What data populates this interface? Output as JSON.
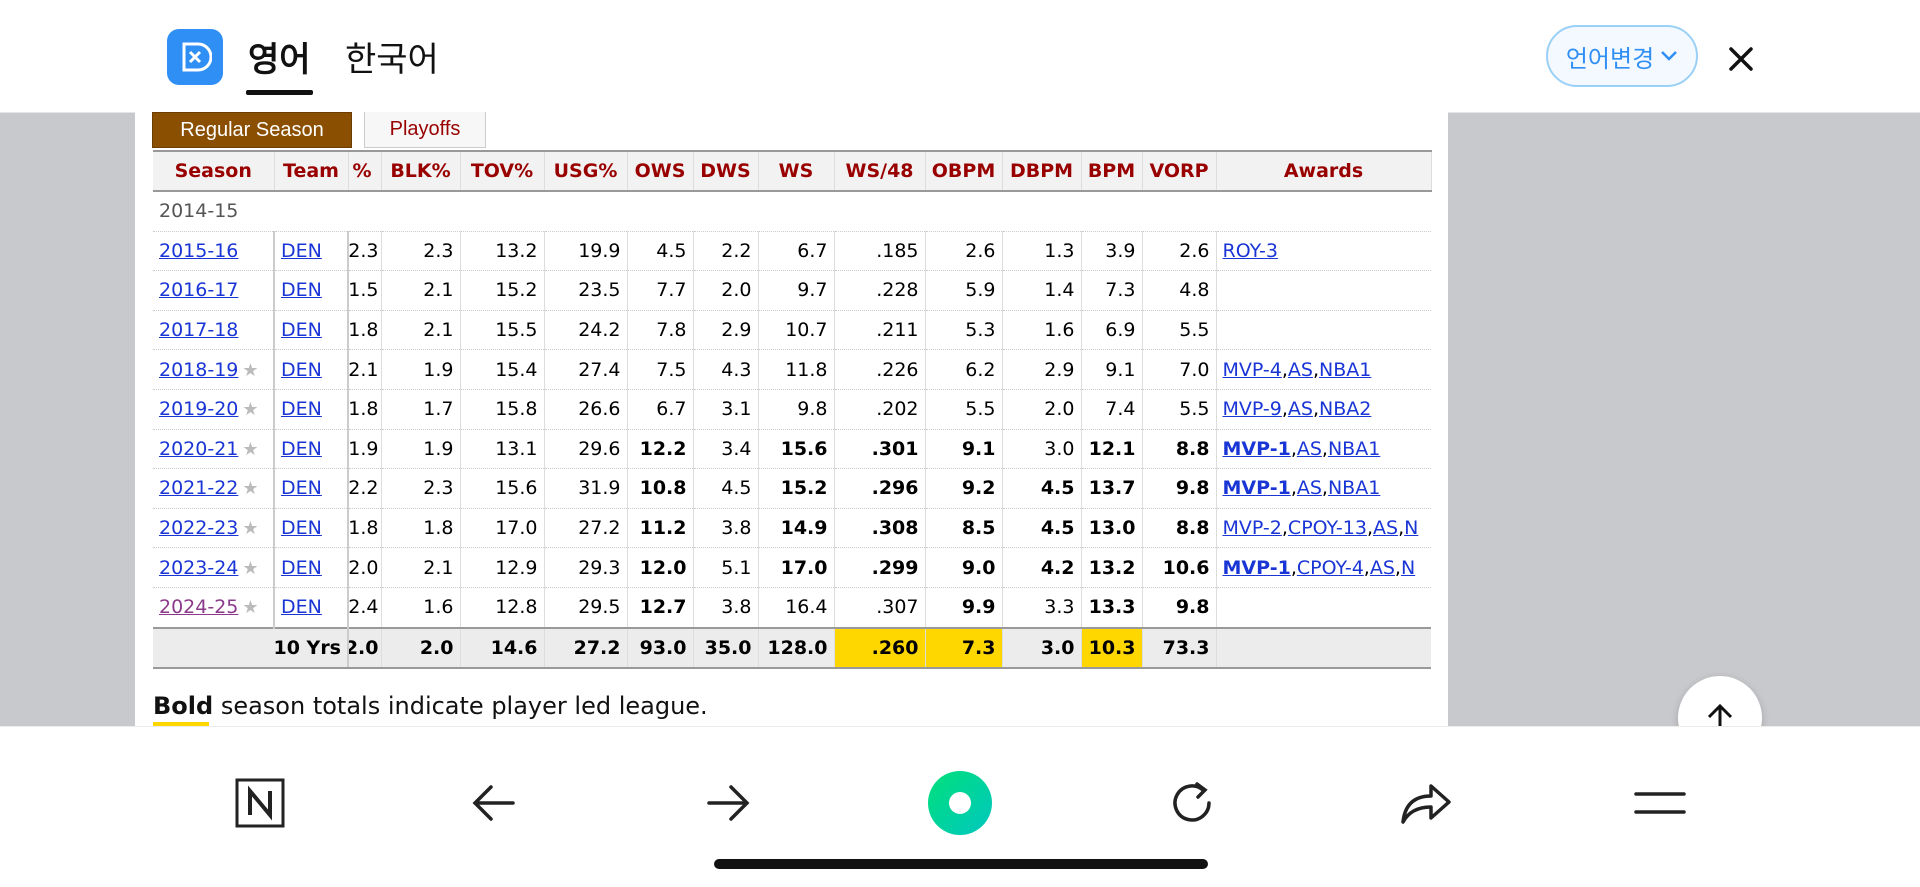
{
  "header": {
    "tabs": [
      {
        "label": "영어",
        "active": true
      },
      {
        "label": "한국어",
        "active": false
      }
    ],
    "lang_change_label": "언어변경",
    "logo_icon": "translate-logo-icon",
    "close_icon": "close-icon"
  },
  "season_tabs": [
    "Regular Season",
    "Playoffs"
  ],
  "table": {
    "columns": [
      "Season",
      "Team",
      "%",
      "BLK%",
      "TOV%",
      "USG%",
      "OWS",
      "DWS",
      "WS",
      "WS/48",
      "OBPM",
      "DBPM",
      "BPM",
      "VORP",
      "Awards"
    ],
    "rows": [
      {
        "season": "2014-15",
        "team": "",
        "star": false,
        "c1": "",
        "blk": "",
        "tov": "",
        "usg": "",
        "ows": "",
        "dws": "",
        "ws": "",
        "ws48": "",
        "obpm": "",
        "dbpm": "",
        "bpm": "",
        "vorp": "",
        "awards": []
      },
      {
        "season": "2015-16",
        "team": "DEN",
        "star": false,
        "c1": "2.3",
        "blk": "2.3",
        "tov": "13.2",
        "usg": "19.9",
        "ows": "4.5",
        "dws": "2.2",
        "ws": "6.7",
        "ws48": ".185",
        "obpm": "2.6",
        "dbpm": "1.3",
        "bpm": "3.9",
        "vorp": "2.6",
        "awards": [
          "ROY-3"
        ]
      },
      {
        "season": "2016-17",
        "team": "DEN",
        "star": false,
        "c1": "1.5",
        "blk": "2.1",
        "tov": "15.2",
        "usg": "23.5",
        "ows": "7.7",
        "dws": "2.0",
        "ws": "9.7",
        "ws48": ".228",
        "obpm": "5.9",
        "dbpm": "1.4",
        "bpm": "7.3",
        "vorp": "4.8",
        "awards": []
      },
      {
        "season": "2017-18",
        "team": "DEN",
        "star": false,
        "c1": "1.8",
        "blk": "2.1",
        "tov": "15.5",
        "usg": "24.2",
        "ows": "7.8",
        "dws": "2.9",
        "ws": "10.7",
        "ws48": ".211",
        "obpm": "5.3",
        "dbpm": "1.6",
        "bpm": "6.9",
        "vorp": "5.5",
        "awards": []
      },
      {
        "season": "2018-19",
        "team": "DEN",
        "star": true,
        "c1": "2.1",
        "blk": "1.9",
        "tov": "15.4",
        "usg": "27.4",
        "ows": "7.5",
        "dws": "4.3",
        "ws": "11.8",
        "ws48": ".226",
        "obpm": "6.2",
        "dbpm": "2.9",
        "bpm": "9.1",
        "vorp": "7.0",
        "awards": [
          "MVP-4",
          "AS",
          "NBA1"
        ]
      },
      {
        "season": "2019-20",
        "team": "DEN",
        "star": true,
        "c1": "1.8",
        "blk": "1.7",
        "tov": "15.8",
        "usg": "26.6",
        "ows": "6.7",
        "dws": "3.1",
        "ws": "9.8",
        "ws48": ".202",
        "obpm": "5.5",
        "dbpm": "2.0",
        "bpm": "7.4",
        "vorp": "5.5",
        "awards": [
          "MVP-9",
          "AS",
          "NBA2"
        ]
      },
      {
        "season": "2020-21",
        "team": "DEN",
        "star": true,
        "c1": "1.9",
        "blk": "1.9",
        "tov": "13.1",
        "usg": "29.6",
        "ows": "12.2",
        "dws": "3.4",
        "ws": "15.6",
        "ws48": ".301",
        "obpm": "9.1",
        "dbpm": "3.0",
        "bpm": "12.1",
        "vorp": "8.8",
        "awards": [
          "MVP-1",
          "AS",
          "NBA1"
        ]
      },
      {
        "season": "2021-22",
        "team": "DEN",
        "star": true,
        "c1": "2.2",
        "blk": "2.3",
        "tov": "15.6",
        "usg": "31.9",
        "ows": "10.8",
        "dws": "4.5",
        "ws": "15.2",
        "ws48": ".296",
        "obpm": "9.2",
        "dbpm": "4.5",
        "bpm": "13.7",
        "vorp": "9.8",
        "awards": [
          "MVP-1",
          "AS",
          "NBA1"
        ]
      },
      {
        "season": "2022-23",
        "team": "DEN",
        "star": true,
        "c1": "1.8",
        "blk": "1.8",
        "tov": "17.0",
        "usg": "27.2",
        "ows": "11.2",
        "dws": "3.8",
        "ws": "14.9",
        "ws48": ".308",
        "obpm": "8.5",
        "dbpm": "4.5",
        "bpm": "13.0",
        "vorp": "8.8",
        "awards": [
          "MVP-2",
          "CPOY-13",
          "AS",
          "N"
        ]
      },
      {
        "season": "2023-24",
        "team": "DEN",
        "star": true,
        "c1": "2.0",
        "blk": "2.1",
        "tov": "12.9",
        "usg": "29.3",
        "ows": "12.0",
        "dws": "5.1",
        "ws": "17.0",
        "ws48": ".299",
        "obpm": "9.0",
        "dbpm": "4.2",
        "bpm": "13.2",
        "vorp": "10.6",
        "awards": [
          "MVP-1",
          "CPOY-4",
          "AS",
          "N"
        ]
      },
      {
        "season": "2024-25",
        "team": "DEN",
        "star": true,
        "c1": "2.4",
        "blk": "1.6",
        "tov": "12.8",
        "usg": "29.5",
        "ows": "12.7",
        "dws": "3.8",
        "ws": "16.4",
        "ws48": ".307",
        "obpm": "9.9",
        "dbpm": "3.3",
        "bpm": "13.3",
        "vorp": "9.8",
        "awards": []
      }
    ],
    "total": {
      "label": "10 Yrs",
      "c1": "2.0",
      "blk": "2.0",
      "tov": "14.6",
      "usg": "27.2",
      "ows": "93.0",
      "dws": "35.0",
      "ws": "128.0",
      "ws48": ".260",
      "obpm": "7.3",
      "dbpm": "3.0",
      "bpm": "10.3",
      "vorp": "73.3"
    }
  },
  "note": {
    "bold": "Bold",
    "rest": " season totals indicate player led league."
  },
  "colors": {
    "accent": "#2f8ff5",
    "header_red": "#990000",
    "link": "#1a35d6",
    "league_lead": "#ffd700",
    "tab_brown": "#8a4f00"
  },
  "bottom_nav": [
    "naver-n-icon",
    "back-arrow-icon",
    "forward-arrow-icon",
    "green-home-icon",
    "reload-icon",
    "share-icon",
    "menu-icon"
  ]
}
